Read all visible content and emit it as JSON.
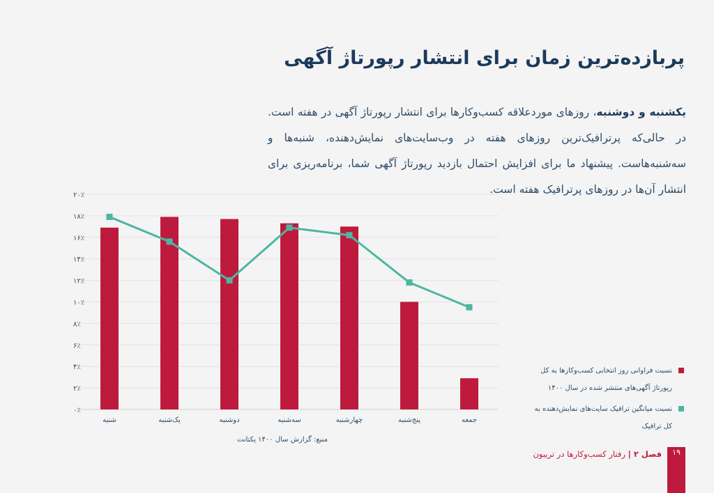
{
  "title": "پربازده‌ترین زمان برای انتشار رپورتاژ آگهی",
  "paragraph": {
    "bold": "یکشنبه و دوشنبه",
    "text": "، روزهای موردعلاقه کسب‌وکارها برای انتشار رپورتاژ آگهی در هفته است. در حالی‌که پرترافیک‌ترین روزهای هفته در وب‌سایت‌های نمایش‌دهنده، شنبه‌ها و سه‌شنبه‌هاست. پیشنهاد ما برای افزایش احتمال بازدید رپورتاژ آگهی شما، برنامه‌ریزی برای انتشار آن‌ها در روزهای پرترافیک هفته است."
  },
  "chart_data": {
    "type": "bar+line",
    "categories": [
      "شنبه",
      "یک‌شنبه",
      "دوشنبه",
      "سه‌شنبه",
      "چهارشنبه",
      "پنج‌شنبه",
      "جمعه"
    ],
    "y_ticks": [
      "۰٪",
      "۲٪",
      "۴٪",
      "۶٪",
      "۸٪",
      "۱۰٪",
      "۱۲٪",
      "۱۴٪",
      "۱۶٪",
      "۱۸٪",
      "۲۰٪"
    ],
    "ylim": [
      0,
      20
    ],
    "grid": true,
    "legend_placement": "right",
    "series": [
      {
        "name": "نسبت فراوانی روز انتخابی کسب‌وکارها به کل رپورتاژ آگهی‌های منتشر شده در سال ۱۴۰۰",
        "type": "bar",
        "color": "#be1a3d",
        "values": [
          16.9,
          17.9,
          17.7,
          17.3,
          17.0,
          10.0,
          2.9
        ]
      },
      {
        "name": "نسبت میانگین ترافیک سایت‌های نمایش‌دهنده به کل ترافیک",
        "type": "line",
        "color": "#4db6a0",
        "values": [
          17.9,
          15.6,
          12.0,
          16.9,
          16.2,
          11.8,
          9.5
        ]
      }
    ]
  },
  "source": "منبع: گزارش سال ۱۴۰۰ یکتانت",
  "footer": {
    "chapter": "فصل ۲ |",
    "text": " رفتار کسب‌وکارها در تریبون",
    "page": "۱۹"
  }
}
